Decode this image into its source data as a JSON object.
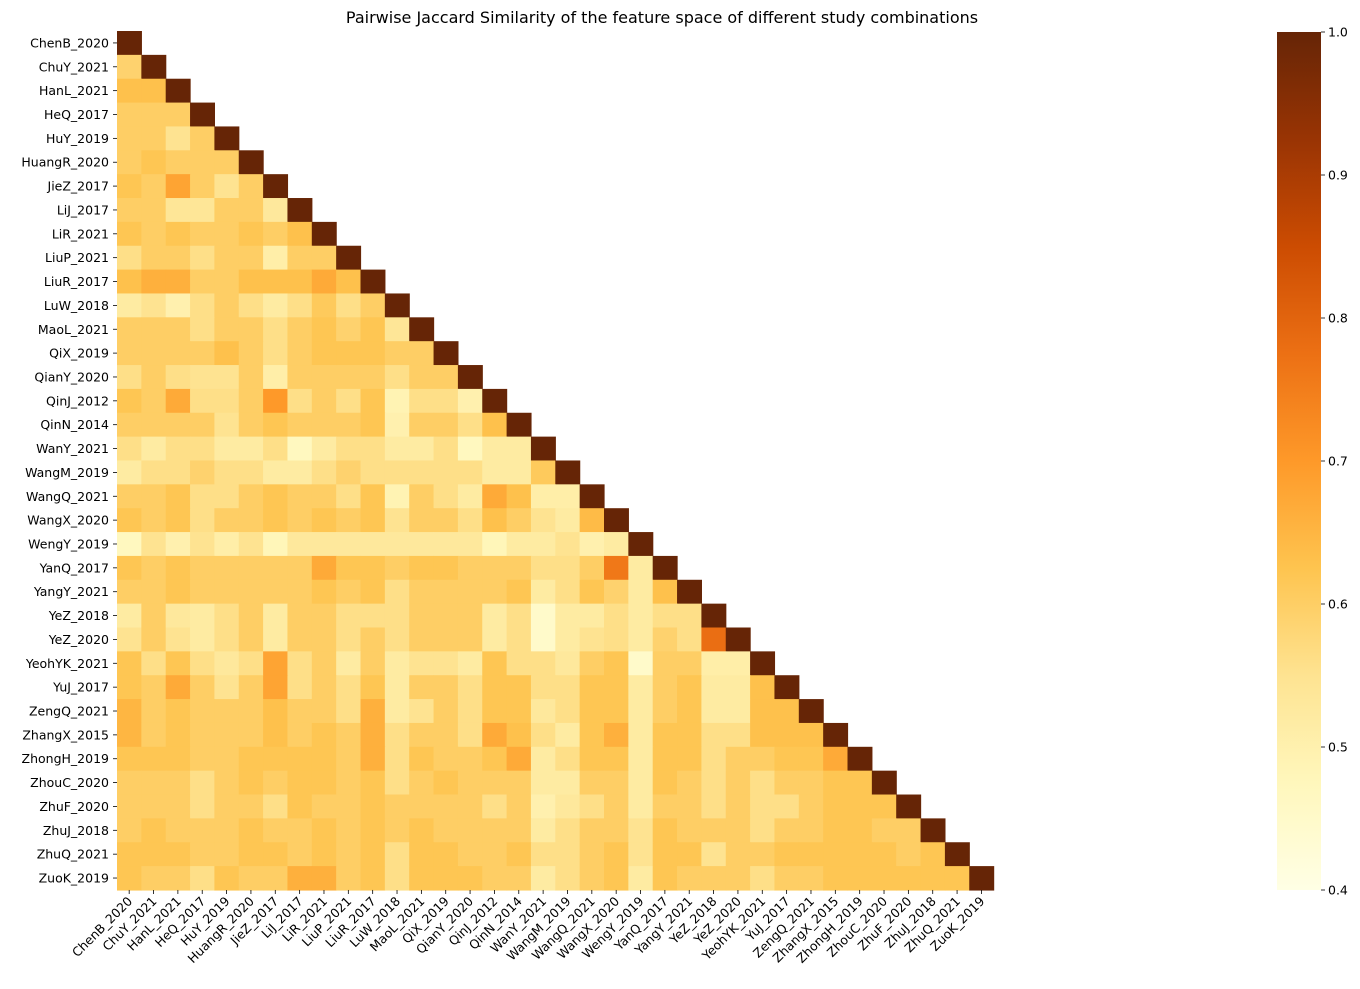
{
  "chart_data": {
    "type": "heatmap",
    "title": "Pairwise Jaccard Similarity of the feature space of different study combinations",
    "labels": [
      "ChenB_2020",
      "ChuY_2021",
      "HanL_2021",
      "HeQ_2017",
      "HuY_2019",
      "HuangR_2020",
      "JieZ_2017",
      "LiJ_2017",
      "LiR_2021",
      "LiuP_2021",
      "LiuR_2017",
      "LuW_2018",
      "MaoL_2021",
      "QiX_2019",
      "QianY_2020",
      "QinJ_2012",
      "QinN_2014",
      "WanY_2021",
      "WangM_2019",
      "WangQ_2021",
      "WangX_2020",
      "WengY_2019",
      "YanQ_2017",
      "YangY_2021",
      "YeZ_2018",
      "YeZ_2020",
      "YeohYK_2021",
      "YuJ_2017",
      "ZengQ_2021",
      "ZhangX_2015",
      "ZhongH_2019",
      "ZhouC_2020",
      "ZhuF_2020",
      "ZhuJ_2018",
      "ZhuQ_2021",
      "ZuoK_2019"
    ],
    "mask": "upper triangle (lower triangle incl. diagonal shown)",
    "colormap": "YlOrBr",
    "colorbar": {
      "min": 0.4,
      "max": 1.0,
      "ticks": [
        "0.4",
        "0.5",
        "0.6",
        "0.7",
        "0.8",
        "0.9",
        "1.0"
      ]
    },
    "rows": [
      [
        1.0
      ],
      [
        0.59,
        1.0
      ],
      [
        0.63,
        0.63,
        1.0
      ],
      [
        0.6,
        0.6,
        0.6,
        1.0
      ],
      [
        0.6,
        0.6,
        0.55,
        0.6,
        1.0
      ],
      [
        0.6,
        0.62,
        0.6,
        0.6,
        0.6,
        1.0
      ],
      [
        0.62,
        0.6,
        0.68,
        0.6,
        0.55,
        0.6,
        1.0
      ],
      [
        0.6,
        0.6,
        0.54,
        0.54,
        0.6,
        0.6,
        0.53,
        1.0
      ],
      [
        0.62,
        0.6,
        0.62,
        0.6,
        0.6,
        0.62,
        0.6,
        0.63,
        1.0
      ],
      [
        0.56,
        0.6,
        0.6,
        0.56,
        0.6,
        0.6,
        0.51,
        0.6,
        0.6,
        1.0
      ],
      [
        0.63,
        0.66,
        0.66,
        0.6,
        0.6,
        0.63,
        0.63,
        0.63,
        0.67,
        0.63,
        1.0
      ],
      [
        0.52,
        0.55,
        0.5,
        0.56,
        0.6,
        0.56,
        0.52,
        0.56,
        0.61,
        0.56,
        0.6,
        1.0
      ],
      [
        0.6,
        0.6,
        0.6,
        0.56,
        0.6,
        0.6,
        0.56,
        0.6,
        0.62,
        0.59,
        0.62,
        0.54,
        1.0
      ],
      [
        0.6,
        0.6,
        0.6,
        0.6,
        0.63,
        0.6,
        0.56,
        0.6,
        0.62,
        0.62,
        0.62,
        0.6,
        0.6,
        1.0
      ],
      [
        0.56,
        0.6,
        0.56,
        0.55,
        0.55,
        0.6,
        0.51,
        0.6,
        0.6,
        0.6,
        0.6,
        0.56,
        0.6,
        0.6,
        1.0
      ],
      [
        0.62,
        0.6,
        0.67,
        0.56,
        0.56,
        0.6,
        0.7,
        0.56,
        0.6,
        0.56,
        0.62,
        0.49,
        0.56,
        0.56,
        0.5,
        1.0
      ],
      [
        0.6,
        0.6,
        0.6,
        0.6,
        0.55,
        0.6,
        0.62,
        0.6,
        0.6,
        0.6,
        0.62,
        0.5,
        0.6,
        0.6,
        0.56,
        0.63,
        1.0
      ],
      [
        0.56,
        0.52,
        0.56,
        0.56,
        0.52,
        0.52,
        0.56,
        0.47,
        0.52,
        0.56,
        0.56,
        0.52,
        0.52,
        0.56,
        0.47,
        0.52,
        0.52,
        1.0
      ],
      [
        0.52,
        0.56,
        0.56,
        0.59,
        0.56,
        0.56,
        0.52,
        0.52,
        0.56,
        0.59,
        0.56,
        0.56,
        0.56,
        0.56,
        0.56,
        0.52,
        0.52,
        0.61,
        1.0
      ],
      [
        0.6,
        0.6,
        0.62,
        0.56,
        0.56,
        0.6,
        0.62,
        0.6,
        0.6,
        0.56,
        0.62,
        0.49,
        0.6,
        0.56,
        0.52,
        0.67,
        0.63,
        0.51,
        0.51,
        1.0
      ],
      [
        0.62,
        0.6,
        0.62,
        0.56,
        0.6,
        0.6,
        0.62,
        0.6,
        0.62,
        0.6,
        0.62,
        0.55,
        0.6,
        0.6,
        0.56,
        0.63,
        0.6,
        0.55,
        0.52,
        0.64,
        1.0
      ],
      [
        0.47,
        0.55,
        0.5,
        0.55,
        0.51,
        0.55,
        0.48,
        0.53,
        0.53,
        0.53,
        0.53,
        0.53,
        0.53,
        0.53,
        0.53,
        0.48,
        0.52,
        0.52,
        0.55,
        0.5,
        0.52,
        1.0
      ],
      [
        0.62,
        0.6,
        0.62,
        0.6,
        0.6,
        0.6,
        0.6,
        0.6,
        0.67,
        0.62,
        0.62,
        0.6,
        0.62,
        0.62,
        0.6,
        0.6,
        0.6,
        0.56,
        0.56,
        0.6,
        0.76,
        0.52,
        1.0
      ],
      [
        0.6,
        0.6,
        0.62,
        0.6,
        0.6,
        0.6,
        0.6,
        0.6,
        0.62,
        0.6,
        0.62,
        0.56,
        0.6,
        0.6,
        0.6,
        0.6,
        0.62,
        0.52,
        0.56,
        0.62,
        0.59,
        0.52,
        0.63,
        1.0
      ],
      [
        0.52,
        0.6,
        0.53,
        0.52,
        0.56,
        0.6,
        0.52,
        0.6,
        0.6,
        0.56,
        0.56,
        0.56,
        0.6,
        0.6,
        0.6,
        0.52,
        0.56,
        0.45,
        0.52,
        0.52,
        0.56,
        0.52,
        0.56,
        0.56,
        1.0
      ],
      [
        0.55,
        0.6,
        0.55,
        0.52,
        0.56,
        0.6,
        0.52,
        0.6,
        0.6,
        0.56,
        0.6,
        0.56,
        0.6,
        0.6,
        0.6,
        0.52,
        0.56,
        0.45,
        0.52,
        0.55,
        0.56,
        0.52,
        0.59,
        0.56,
        0.78,
        1.0
      ],
      [
        0.62,
        0.56,
        0.62,
        0.56,
        0.53,
        0.56,
        0.68,
        0.56,
        0.6,
        0.52,
        0.6,
        0.52,
        0.55,
        0.55,
        0.52,
        0.62,
        0.56,
        0.56,
        0.53,
        0.6,
        0.62,
        0.45,
        0.6,
        0.6,
        0.51,
        0.51,
        1.0
      ],
      [
        0.62,
        0.6,
        0.67,
        0.6,
        0.55,
        0.6,
        0.68,
        0.56,
        0.6,
        0.56,
        0.62,
        0.52,
        0.6,
        0.6,
        0.56,
        0.62,
        0.62,
        0.56,
        0.56,
        0.62,
        0.62,
        0.52,
        0.6,
        0.62,
        0.52,
        0.52,
        0.63,
        1.0
      ],
      [
        0.65,
        0.6,
        0.62,
        0.6,
        0.6,
        0.6,
        0.63,
        0.6,
        0.6,
        0.56,
        0.66,
        0.52,
        0.55,
        0.6,
        0.56,
        0.62,
        0.62,
        0.53,
        0.56,
        0.62,
        0.62,
        0.52,
        0.6,
        0.62,
        0.52,
        0.52,
        0.63,
        0.63,
        1.0
      ],
      [
        0.65,
        0.6,
        0.62,
        0.6,
        0.6,
        0.6,
        0.63,
        0.6,
        0.62,
        0.6,
        0.66,
        0.56,
        0.6,
        0.6,
        0.56,
        0.67,
        0.63,
        0.56,
        0.52,
        0.62,
        0.66,
        0.52,
        0.62,
        0.62,
        0.56,
        0.56,
        0.63,
        0.63,
        0.63,
        1.0
      ],
      [
        0.62,
        0.62,
        0.62,
        0.6,
        0.6,
        0.62,
        0.62,
        0.62,
        0.62,
        0.6,
        0.66,
        0.56,
        0.62,
        0.6,
        0.6,
        0.62,
        0.67,
        0.52,
        0.56,
        0.62,
        0.62,
        0.52,
        0.62,
        0.62,
        0.56,
        0.6,
        0.6,
        0.62,
        0.62,
        0.67,
        1.0
      ],
      [
        0.6,
        0.6,
        0.6,
        0.56,
        0.6,
        0.62,
        0.6,
        0.62,
        0.62,
        0.6,
        0.62,
        0.56,
        0.6,
        0.62,
        0.6,
        0.6,
        0.6,
        0.52,
        0.52,
        0.6,
        0.6,
        0.52,
        0.62,
        0.6,
        0.56,
        0.6,
        0.56,
        0.6,
        0.6,
        0.62,
        0.62,
        1.0
      ],
      [
        0.6,
        0.6,
        0.6,
        0.56,
        0.6,
        0.6,
        0.56,
        0.62,
        0.6,
        0.6,
        0.62,
        0.6,
        0.6,
        0.6,
        0.6,
        0.56,
        0.6,
        0.5,
        0.53,
        0.56,
        0.6,
        0.52,
        0.6,
        0.6,
        0.56,
        0.6,
        0.56,
        0.56,
        0.6,
        0.62,
        0.62,
        0.62,
        1.0
      ],
      [
        0.6,
        0.62,
        0.6,
        0.6,
        0.6,
        0.62,
        0.6,
        0.6,
        0.62,
        0.6,
        0.62,
        0.6,
        0.62,
        0.6,
        0.6,
        0.6,
        0.6,
        0.52,
        0.56,
        0.6,
        0.6,
        0.55,
        0.62,
        0.6,
        0.6,
        0.6,
        0.56,
        0.6,
        0.6,
        0.62,
        0.62,
        0.6,
        0.6,
        1.0
      ],
      [
        0.62,
        0.62,
        0.62,
        0.6,
        0.6,
        0.62,
        0.62,
        0.6,
        0.62,
        0.6,
        0.62,
        0.56,
        0.62,
        0.62,
        0.6,
        0.6,
        0.62,
        0.56,
        0.56,
        0.6,
        0.62,
        0.55,
        0.62,
        0.62,
        0.55,
        0.6,
        0.6,
        0.62,
        0.62,
        0.62,
        0.62,
        0.62,
        0.6,
        0.62,
        1.0
      ],
      [
        0.62,
        0.6,
        0.6,
        0.56,
        0.62,
        0.6,
        0.6,
        0.66,
        0.66,
        0.6,
        0.62,
        0.56,
        0.62,
        0.62,
        0.62,
        0.6,
        0.6,
        0.52,
        0.56,
        0.6,
        0.62,
        0.52,
        0.62,
        0.6,
        0.6,
        0.6,
        0.56,
        0.6,
        0.6,
        0.62,
        0.62,
        0.62,
        0.62,
        0.62,
        0.62,
        1.0
      ]
    ]
  }
}
